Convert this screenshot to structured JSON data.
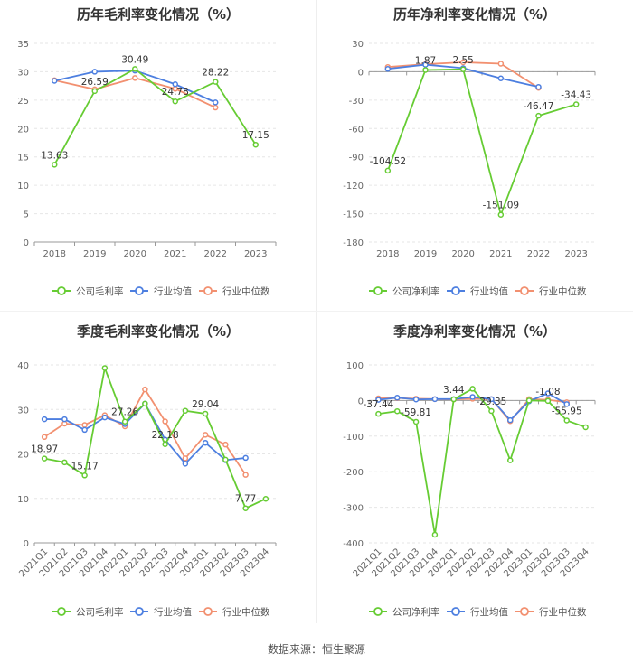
{
  "colors": {
    "company": "#66cc33",
    "industry_avg": "#4d7fe0",
    "industry_median": "#f29070",
    "axis": "#999999",
    "grid": "#e6e6e6",
    "label": "#333333",
    "tick": "#666666"
  },
  "source": "数据来源：恒生聚源",
  "chart_data": [
    {
      "type": "line",
      "title": "历年毛利率变化情况（%）",
      "categories": [
        "2018",
        "2019",
        "2020",
        "2021",
        "2022",
        "2023"
      ],
      "ylim": [
        0,
        35
      ],
      "yticks": [
        0,
        5,
        10,
        15,
        20,
        25,
        30,
        35
      ],
      "grid": true,
      "legend_position": "bottom",
      "series": [
        {
          "name": "公司毛利率",
          "key": "company",
          "values": [
            13.63,
            26.59,
            30.49,
            24.78,
            28.22,
            17.15
          ]
        },
        {
          "name": "行业均值",
          "key": "industry_avg",
          "values": [
            28.4,
            30.0,
            30.2,
            27.8,
            24.6,
            null
          ]
        },
        {
          "name": "行业中位数",
          "key": "industry_median",
          "values": [
            28.5,
            26.9,
            28.9,
            27.0,
            23.7,
            null
          ]
        }
      ],
      "data_labels": [
        {
          "index": 0,
          "text": "13.63",
          "pos": "above"
        },
        {
          "index": 1,
          "text": "26.59",
          "pos": "above"
        },
        {
          "index": 2,
          "text": "30.49",
          "pos": "above"
        },
        {
          "index": 3,
          "text": "24.78",
          "pos": "above"
        },
        {
          "index": 4,
          "text": "28.22",
          "pos": "above"
        },
        {
          "index": 5,
          "text": "17.15",
          "pos": "above"
        }
      ]
    },
    {
      "type": "line",
      "title": "历年净利率变化情况（%）",
      "categories": [
        "2018",
        "2019",
        "2020",
        "2021",
        "2022",
        "2023"
      ],
      "ylim": [
        -180,
        30
      ],
      "yticks": [
        -180,
        -150,
        -120,
        -90,
        -60,
        -30,
        0,
        30
      ],
      "grid": true,
      "legend_position": "bottom",
      "series": [
        {
          "name": "公司净利率",
          "key": "company",
          "values": [
            -104.52,
            1.87,
            2.55,
            -151.09,
            -46.47,
            -34.43
          ]
        },
        {
          "name": "行业均值",
          "key": "industry_avg",
          "values": [
            3.0,
            7.5,
            3.8,
            -7.0,
            -16.0,
            null
          ]
        },
        {
          "name": "行业中位数",
          "key": "industry_median",
          "values": [
            5.0,
            8.0,
            10.0,
            8.5,
            -17.0,
            null
          ]
        }
      ],
      "data_labels": [
        {
          "index": 0,
          "text": "-104.52",
          "pos": "above"
        },
        {
          "index": 1,
          "text": "1.87",
          "pos": "above"
        },
        {
          "index": 2,
          "text": "2.55",
          "pos": "above"
        },
        {
          "index": 3,
          "text": "-151.09",
          "pos": "above"
        },
        {
          "index": 4,
          "text": "-46.47",
          "pos": "above"
        },
        {
          "index": 5,
          "text": "-34.43",
          "pos": "above"
        }
      ]
    },
    {
      "type": "line",
      "title": "季度毛利率变化情况（%）",
      "categories": [
        "2021Q1",
        "2021Q2",
        "2021Q3",
        "2021Q4",
        "2022Q1",
        "2022Q2",
        "2022Q3",
        "2022Q4",
        "2023Q1",
        "2023Q2",
        "2023Q3",
        "2023Q4"
      ],
      "ylim": [
        0,
        40
      ],
      "yticks": [
        0,
        10,
        20,
        30,
        40
      ],
      "grid": true,
      "legend_position": "bottom",
      "series": [
        {
          "name": "公司毛利率",
          "key": "company",
          "values": [
            18.97,
            18.1,
            15.17,
            39.3,
            27.26,
            31.3,
            22.18,
            29.7,
            29.04,
            18.7,
            7.77,
            9.9
          ]
        },
        {
          "name": "行业均值",
          "key": "industry_avg",
          "values": [
            27.8,
            27.8,
            25.4,
            28.2,
            26.7,
            31.3,
            23.2,
            17.8,
            22.5,
            18.6,
            19.1,
            null
          ]
        },
        {
          "name": "行业中位数",
          "key": "industry_median",
          "values": [
            23.8,
            26.8,
            26.5,
            28.7,
            26.2,
            34.5,
            27.3,
            19.0,
            24.3,
            22.1,
            15.3,
            null
          ]
        }
      ],
      "data_labels": [
        {
          "index": 0,
          "text": "18.97",
          "pos": "above"
        },
        {
          "index": 2,
          "text": "15.17",
          "pos": "above"
        },
        {
          "index": 4,
          "text": "27.26",
          "pos": "above"
        },
        {
          "index": 6,
          "text": "22.18",
          "pos": "above"
        },
        {
          "index": 8,
          "text": "29.04",
          "pos": "above"
        },
        {
          "index": 10,
          "text": "7.77",
          "pos": "above"
        }
      ]
    },
    {
      "type": "line",
      "title": "季度净利率变化情况（%）",
      "categories": [
        "2021Q1",
        "2021Q2",
        "2021Q3",
        "2021Q4",
        "2022Q1",
        "2022Q2",
        "2022Q3",
        "2022Q4",
        "2023Q1",
        "2023Q2",
        "2023Q3",
        "2023Q4"
      ],
      "ylim": [
        -400,
        100
      ],
      "yticks": [
        -400,
        -300,
        -200,
        -100,
        0,
        100
      ],
      "grid": true,
      "legend_position": "bottom",
      "series": [
        {
          "name": "公司净利率",
          "key": "company",
          "values": [
            -37.44,
            -30,
            -59.81,
            -377,
            3.44,
            33,
            -29.35,
            -168,
            0,
            -1.08,
            -55.95,
            -75
          ]
        },
        {
          "name": "行业均值",
          "key": "industry_avg",
          "values": [
            2,
            8,
            3,
            4,
            4,
            10,
            4,
            -55,
            -2,
            20,
            -10,
            null
          ]
        },
        {
          "name": "行业中位数",
          "key": "industry_median",
          "values": [
            6,
            7,
            5,
            4,
            3,
            5,
            4,
            -58,
            4,
            2,
            -5,
            null
          ]
        }
      ],
      "data_labels": [
        {
          "index": 0,
          "text": "-37.44",
          "pos": "above"
        },
        {
          "index": 2,
          "text": "-59.81",
          "pos": "above"
        },
        {
          "index": 4,
          "text": "3.44",
          "pos": "above"
        },
        {
          "index": 6,
          "text": "-29.35",
          "pos": "above"
        },
        {
          "index": 9,
          "text": "-1.08",
          "pos": "above"
        },
        {
          "index": 10,
          "text": "-55.95",
          "pos": "above"
        }
      ]
    }
  ]
}
